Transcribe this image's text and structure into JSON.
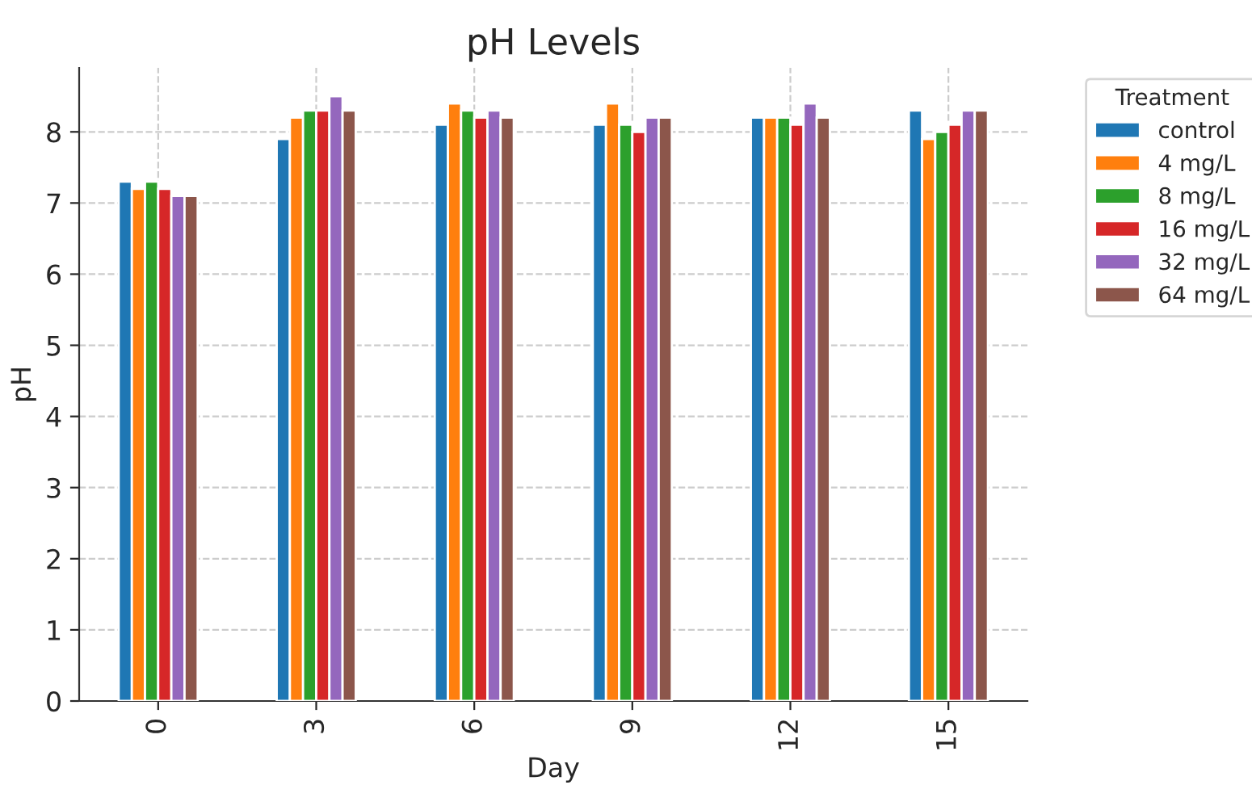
{
  "chart_data": {
    "type": "bar",
    "title": "pH Levels",
    "xlabel": "Day",
    "ylabel": "pH",
    "legend_title": "Treatment",
    "legend": "top right",
    "grid": true,
    "categories": [
      "0",
      "3",
      "6",
      "9",
      "12",
      "15"
    ],
    "ylim": [
      0,
      8.9
    ],
    "yticks": [
      0,
      1,
      2,
      3,
      4,
      5,
      6,
      7,
      8
    ],
    "series": [
      {
        "name": "control",
        "color": "#1f77b4",
        "values": [
          7.3,
          7.9,
          8.1,
          8.1,
          8.2,
          8.3
        ]
      },
      {
        "name": "4 mg/L",
        "color": "#ff7f0e",
        "values": [
          7.2,
          8.2,
          8.4,
          8.4,
          8.2,
          7.9
        ]
      },
      {
        "name": "8 mg/L",
        "color": "#2ca02c",
        "values": [
          7.3,
          8.3,
          8.3,
          8.1,
          8.2,
          8.0
        ]
      },
      {
        "name": "16 mg/L",
        "color": "#d62728",
        "values": [
          7.2,
          8.3,
          8.2,
          8.0,
          8.1,
          8.1
        ]
      },
      {
        "name": "32 mg/L",
        "color": "#9467bd",
        "values": [
          7.1,
          8.5,
          8.3,
          8.2,
          8.4,
          8.3
        ]
      },
      {
        "name": "64 mg/L",
        "color": "#8c564b",
        "values": [
          7.1,
          8.3,
          8.2,
          8.2,
          8.2,
          8.3
        ]
      }
    ]
  }
}
